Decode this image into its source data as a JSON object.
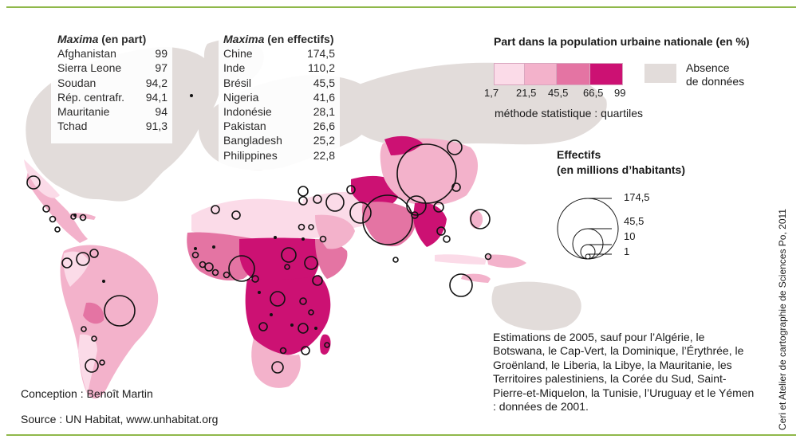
{
  "maxima_part": {
    "title_italic": "Maxima",
    "title_rest": " (en part)",
    "rows": [
      {
        "country": "Afghanistan",
        "value": "99"
      },
      {
        "country": "Sierra Leone",
        "value": "97"
      },
      {
        "country": "Soudan",
        "value": "94,2"
      },
      {
        "country": "Rép. centrafr.",
        "value": "94,1"
      },
      {
        "country": "Mauritanie",
        "value": "94"
      },
      {
        "country": "Tchad",
        "value": "91,3"
      }
    ]
  },
  "maxima_effectifs": {
    "title_italic": "Maxima",
    "title_rest": " (en effectifs)",
    "rows": [
      {
        "country": "Chine",
        "value": "174,5"
      },
      {
        "country": "Inde",
        "value": "110,2"
      },
      {
        "country": "Brésil",
        "value": "45,5"
      },
      {
        "country": "Nigeria",
        "value": "41,6"
      },
      {
        "country": "Indonésie",
        "value": "28,1"
      },
      {
        "country": "Pakistan",
        "value": "26,6"
      },
      {
        "country": "Bangladesh",
        "value": "25,2"
      },
      {
        "country": "Philippines",
        "value": "22,8"
      }
    ]
  },
  "legend": {
    "title": "Part dans la population urbaine nationale (en %)",
    "classes": [
      {
        "color": "#fbdbe8"
      },
      {
        "color": "#f3b2cb"
      },
      {
        "color": "#e474a3"
      },
      {
        "color": "#cc1173"
      }
    ],
    "breaks": [
      "1,7",
      "21,5",
      "45,5",
      "66,5",
      "99"
    ],
    "absence_label": "Absence\nde données",
    "absence_color": "#e2dcda",
    "method": "méthode statistique : quartiles"
  },
  "effectifs": {
    "title_line1": "Effectifs",
    "title_line2": "(en millions d’habitants)",
    "sizes": [
      "174,5",
      "45,5",
      "10",
      "1"
    ]
  },
  "notes": "Estimations de 2005, sauf pour l’Algérie, le Botswana, le Cap-Vert, la Dominique, l’Érythrée, le Groënland, le Liberia, la Libye, la Mauritanie, les Territoires palestiniens, la Corée du Sud, Saint-Pierre-et-Miquelon, la Tunisie, l’Uruguay et le Yémen : données de 2001.",
  "conception": "Conception : Benoît Martin",
  "source": "Source : UN Habitat, www.unhabitat.org",
  "credit": "Ceri et Atelier de cartographie de Sciences Po, 2011",
  "colors": {
    "frame": "#8fb84a",
    "nodata": "#e2dcda",
    "c1": "#fbdbe8",
    "c2": "#f3b2cb",
    "c3": "#e474a3",
    "c4": "#cc1173"
  }
}
